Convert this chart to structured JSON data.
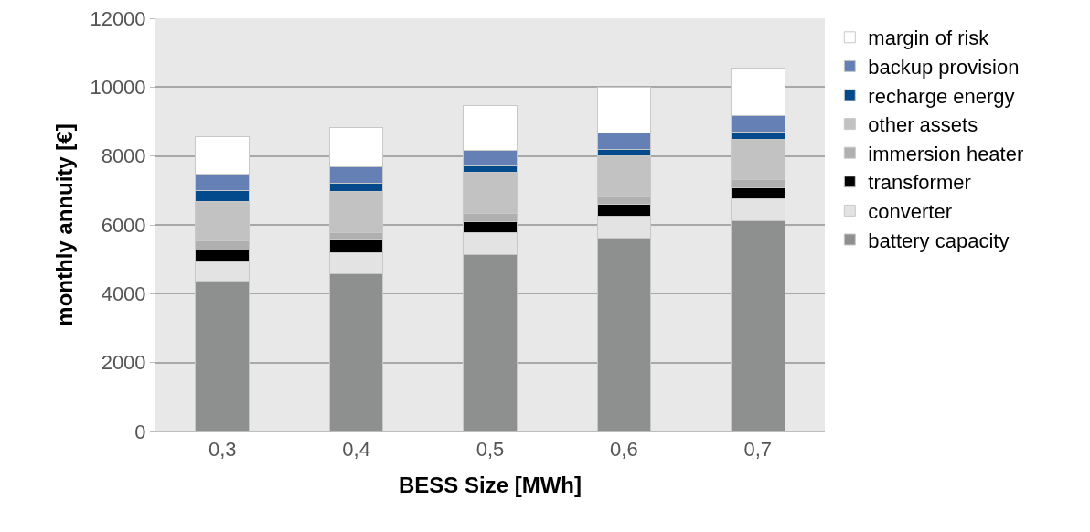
{
  "chart_data": {
    "type": "bar",
    "stacked": true,
    "xlabel": "BESS Size [MWh]",
    "ylabel": "monthly annuity [€]",
    "categories": [
      "0,3",
      "0,4",
      "0,5",
      "0,6",
      "0,7"
    ],
    "ylim": [
      0,
      12000
    ],
    "yticks": [
      0,
      2000,
      4000,
      6000,
      8000,
      10000,
      12000
    ],
    "grid": "y",
    "legend": "right",
    "series": [
      {
        "name": "battery capacity",
        "color": "#8e8f8f",
        "values": [
          4360,
          4580,
          5130,
          5620,
          6130
        ]
      },
      {
        "name": "converter",
        "color": "#e3e3e3",
        "values": [
          575,
          620,
          645,
          625,
          615
        ]
      },
      {
        "name": "transformer",
        "color": "#000000",
        "values": [
          335,
          355,
          310,
          350,
          335
        ]
      },
      {
        "name": "immersion heater",
        "color": "#b0b0b0",
        "values": [
          265,
          220,
          245,
          240,
          240
        ]
      },
      {
        "name": "other assets",
        "color": "#c1c2c1",
        "values": [
          1150,
          1190,
          1185,
          1175,
          1175
        ]
      },
      {
        "name": "recharge energy",
        "color": "#034a8c",
        "values": [
          300,
          250,
          200,
          170,
          195
        ]
      },
      {
        "name": "backup provision",
        "color": "#6480b4",
        "values": [
          485,
          460,
          460,
          485,
          470
        ]
      },
      {
        "name": "margin of risk",
        "color": "#ffffff",
        "values": [
          1090,
          1165,
          1280,
          1325,
          1385
        ]
      }
    ]
  }
}
